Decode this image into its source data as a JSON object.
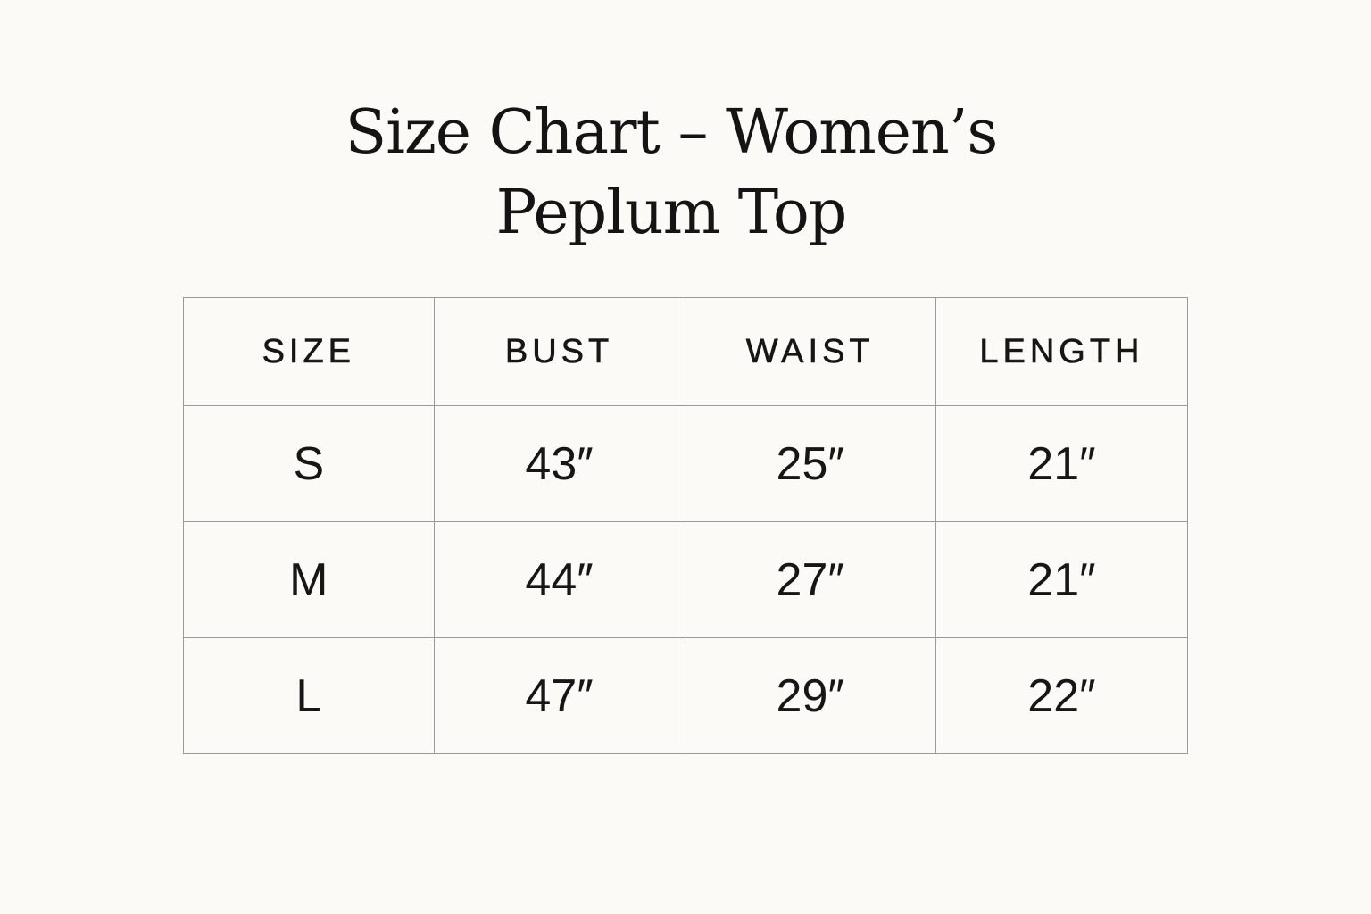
{
  "title": {
    "line1": "Size Chart – Women’s",
    "line2": "Peplum Top"
  },
  "table": {
    "headers": [
      "SIZE",
      "BUST",
      "WAIST",
      "LENGTH"
    ],
    "rows": [
      [
        "S",
        "43″",
        "25″",
        "21″"
      ],
      [
        "M",
        "44″",
        "27″",
        "21″"
      ],
      [
        "L",
        "47″",
        "29″",
        "22″"
      ]
    ]
  }
}
